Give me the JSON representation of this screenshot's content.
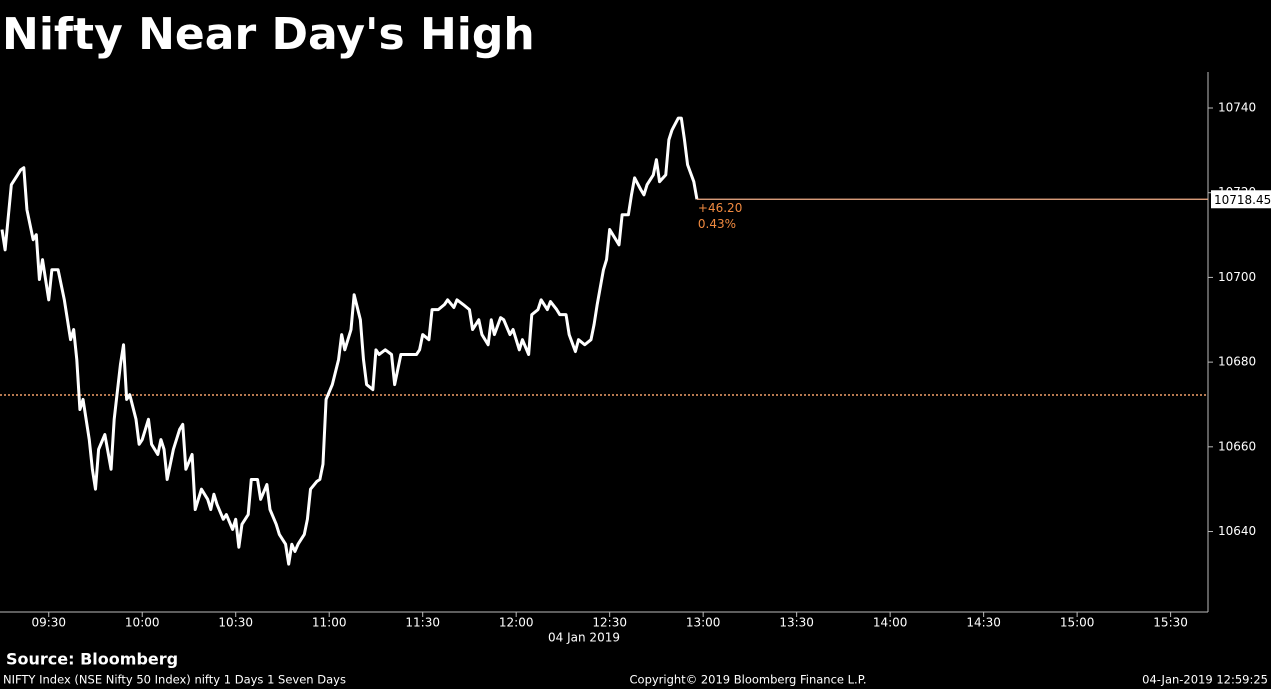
{
  "chart_data": {
    "type": "line",
    "title": "Nifty Near Day's High",
    "source": "Source: Bloomberg",
    "x_axis_label": "04 Jan 2019",
    "footer_left": "NIFTY Index (NSE Nifty 50 Index) nifty 1 Days 1 Seven Days",
    "footer_center": "Copyright© 2019 Bloomberg Finance L.P.",
    "footer_right": "04-Jan-2019 12:59:25",
    "annotations": {
      "change": "+46.20",
      "change_pct": "0.43%"
    },
    "reference_line": {
      "value": 10672.25,
      "color": "#f2a06a"
    },
    "last_value_line_color": "#f4b08a",
    "xlim": [
      555,
      942
    ],
    "ylim": [
      10621,
      10748.5
    ],
    "xticks": [
      {
        "value": 570,
        "label": "09:30"
      },
      {
        "value": 600,
        "label": "10:00"
      },
      {
        "value": 630,
        "label": "10:30"
      },
      {
        "value": 660,
        "label": "11:00"
      },
      {
        "value": 690,
        "label": "11:30"
      },
      {
        "value": 720,
        "label": "12:00"
      },
      {
        "value": 750,
        "label": "12:30"
      },
      {
        "value": 780,
        "label": "13:00"
      },
      {
        "value": 810,
        "label": "13:30"
      },
      {
        "value": 840,
        "label": "14:00"
      },
      {
        "value": 870,
        "label": "14:30"
      },
      {
        "value": 900,
        "label": "15:00"
      },
      {
        "value": 930,
        "label": "15:30"
      }
    ],
    "yticks": [
      10640,
      10660,
      10680,
      10700,
      10720,
      10740
    ],
    "x": [
      555,
      556,
      558,
      560,
      561,
      562,
      563,
      565,
      566,
      567,
      568,
      570,
      571,
      573,
      575,
      577,
      578,
      579,
      580,
      581,
      583,
      584,
      585,
      586,
      588,
      590,
      591,
      593,
      594,
      595,
      596,
      598,
      599,
      600,
      602,
      603,
      605,
      606,
      607,
      608,
      610,
      612,
      613,
      614,
      616,
      617,
      619,
      621,
      622,
      623,
      624,
      626,
      627,
      629,
      630,
      631,
      632,
      634,
      635,
      637,
      638,
      640,
      641,
      643,
      644,
      646,
      647,
      648,
      649,
      650,
      652,
      653,
      654,
      656,
      657,
      658,
      659,
      661,
      663,
      664,
      665,
      667,
      668,
      670,
      671,
      672,
      674,
      675,
      676,
      678,
      680,
      681,
      683,
      685,
      687,
      688,
      689,
      690,
      692,
      693,
      695,
      697,
      698,
      700,
      701,
      703,
      705,
      706,
      708,
      709,
      711,
      712,
      713,
      715,
      716,
      718,
      719,
      721,
      722,
      724,
      725,
      727,
      728,
      730,
      731,
      733,
      734,
      736,
      737,
      739,
      740,
      742,
      744,
      745,
      746,
      748,
      749,
      750,
      752,
      753,
      754,
      756,
      757,
      758,
      760,
      761,
      762,
      764,
      765,
      766,
      768,
      769,
      770,
      772,
      773,
      774,
      775,
      777,
      778
    ],
    "series": [
      {
        "name": "NIFTY Index",
        "color": "#ffffff",
        "values": [
          10711.3,
          10706.5,
          10721.9,
          10724.2,
          10725.4,
          10725.9,
          10716.0,
          10708.9,
          10710.1,
          10699.5,
          10704.2,
          10694.7,
          10701.8,
          10701.8,
          10694.7,
          10685.3,
          10687.7,
          10680.6,
          10668.8,
          10671.2,
          10661.7,
          10654.7,
          10650.0,
          10659.4,
          10662.9,
          10654.7,
          10666.5,
          10679.4,
          10684.1,
          10671.2,
          10672.3,
          10666.5,
          10660.6,
          10661.7,
          10666.5,
          10660.6,
          10658.2,
          10661.7,
          10659.4,
          10652.3,
          10659.4,
          10664.1,
          10665.3,
          10654.7,
          10658.2,
          10645.2,
          10650.0,
          10647.6,
          10645.2,
          10648.8,
          10646.4,
          10642.9,
          10644.0,
          10640.5,
          10642.9,
          10636.3,
          10641.7,
          10644.0,
          10652.3,
          10652.3,
          10647.6,
          10651.1,
          10645.2,
          10641.7,
          10639.3,
          10637.0,
          10632.3,
          10637.0,
          10635.3,
          10637.0,
          10639.3,
          10642.9,
          10650.0,
          10651.8,
          10652.3,
          10655.9,
          10671.2,
          10674.7,
          10680.6,
          10686.5,
          10682.9,
          10687.7,
          10695.9,
          10690.0,
          10680.6,
          10674.7,
          10673.5,
          10682.9,
          10681.8,
          10682.9,
          10681.8,
          10674.7,
          10681.8,
          10681.8,
          10681.8,
          10681.8,
          10682.9,
          10686.5,
          10685.3,
          10692.4,
          10692.4,
          10693.6,
          10694.7,
          10692.9,
          10694.7,
          10693.6,
          10692.4,
          10687.7,
          10690.0,
          10686.5,
          10684.1,
          10690.0,
          10686.5,
          10690.5,
          10690.0,
          10686.5,
          10687.7,
          10682.9,
          10685.3,
          10681.8,
          10691.2,
          10692.4,
          10694.7,
          10692.4,
          10694.3,
          10692.4,
          10691.2,
          10691.2,
          10686.5,
          10682.5,
          10685.3,
          10684.1,
          10685.3,
          10688.9,
          10693.6,
          10701.8,
          10704.2,
          10711.3,
          10708.9,
          10707.7,
          10714.8,
          10714.8,
          10719.5,
          10723.5,
          10720.7,
          10719.5,
          10721.9,
          10724.2,
          10727.8,
          10722.6,
          10724.2,
          10732.5,
          10734.8,
          10737.6,
          10737.6,
          10732.5,
          10726.6,
          10722.6,
          10718.45
        ]
      }
    ]
  }
}
